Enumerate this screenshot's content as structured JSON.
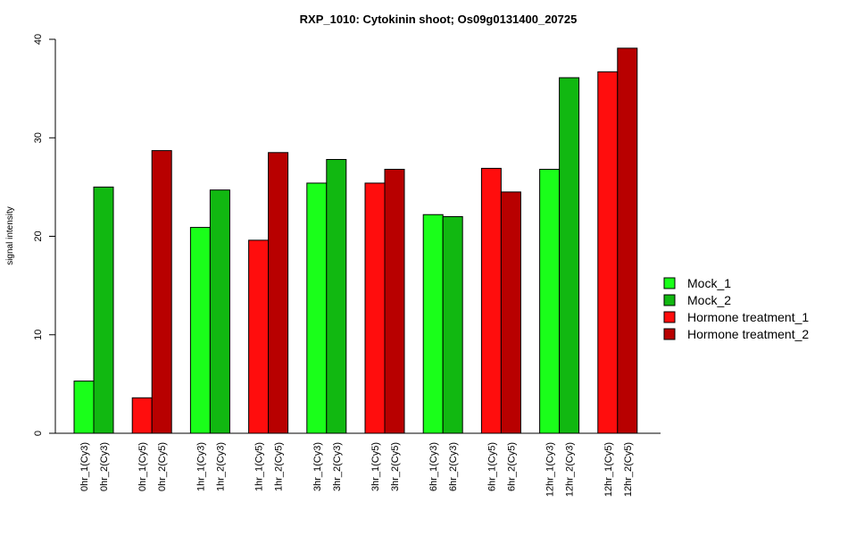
{
  "chart_data": {
    "type": "bar",
    "title": "RXP_1010: Cytokinin shoot; Os09g0131400_20725",
    "xlabel": "",
    "ylabel": "signal intensity",
    "ylim": [
      0,
      40
    ],
    "yticks": [
      "0",
      "10",
      "20",
      "30",
      "40"
    ],
    "categories": [
      "0hr_1(Cy3)",
      "0hr_2(Cy3)",
      "0hr_1(Cy5)",
      "0hr_2(Cy5)",
      "1hr_1(Cy3)",
      "1hr_2(Cy3)",
      "1hr_1(Cy5)",
      "1hr_2(Cy5)",
      "3hr_1(Cy3)",
      "3hr_2(Cy3)",
      "3hr_1(Cy5)",
      "3hr_2(Cy5)",
      "6hr_1(Cy3)",
      "6hr_2(Cy3)",
      "6hr_1(Cy5)",
      "6hr_2(Cy5)",
      "12hr_1(Cy3)",
      "12hr_2(Cy3)",
      "12hr_1(Cy5)",
      "12hr_2(Cy5)"
    ],
    "values": [
      5.3,
      25.0,
      3.6,
      28.7,
      20.9,
      24.7,
      19.6,
      28.5,
      25.4,
      27.8,
      25.4,
      26.8,
      22.2,
      22.0,
      26.9,
      24.5,
      26.8,
      36.1,
      36.7,
      39.1
    ],
    "bar_series": [
      0,
      1,
      2,
      3,
      0,
      1,
      2,
      3,
      0,
      1,
      2,
      3,
      0,
      1,
      2,
      3,
      0,
      1,
      2,
      3
    ],
    "series": [
      {
        "name": "Mock_1",
        "color": "#1aff1a"
      },
      {
        "name": "Mock_2",
        "color": "#11b811"
      },
      {
        "name": "Hormone treatment_1",
        "color": "#ff0d0d"
      },
      {
        "name": "Hormone treatment_2",
        "color": "#b80000"
      }
    ],
    "grid": false,
    "legend_position": "right"
  }
}
